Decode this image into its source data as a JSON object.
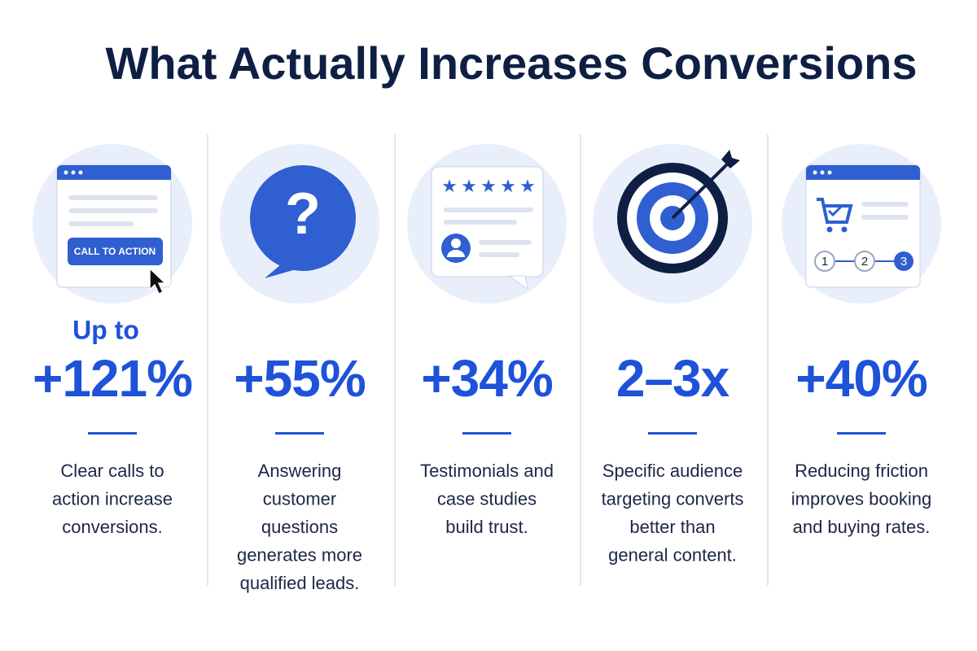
{
  "title": "What Actually Increases Conversions",
  "columns": [
    {
      "icon_text": "CALL TO ACTION",
      "prefix": "Up to",
      "stat": "+121%",
      "description_lines": [
        "Clear calls to",
        "action increase",
        "conversions."
      ]
    },
    {
      "icon_text": "?",
      "stat": "+55%",
      "description_lines": [
        "Answering",
        "customer",
        "questions",
        "generates more",
        "qualified leads."
      ]
    },
    {
      "stat": "+34%",
      "description_lines": [
        "Testimonials and",
        "case studies",
        "build trust."
      ]
    },
    {
      "stat": "2–3x",
      "description_lines": [
        "Specific audience",
        "targeting converts",
        "better than",
        "general content."
      ]
    },
    {
      "icon_steps": [
        "1",
        "2",
        "3"
      ],
      "stat": "+40%",
      "description_lines": [
        "Reducing friction",
        "improves booking",
        "and buying rates."
      ]
    }
  ]
}
